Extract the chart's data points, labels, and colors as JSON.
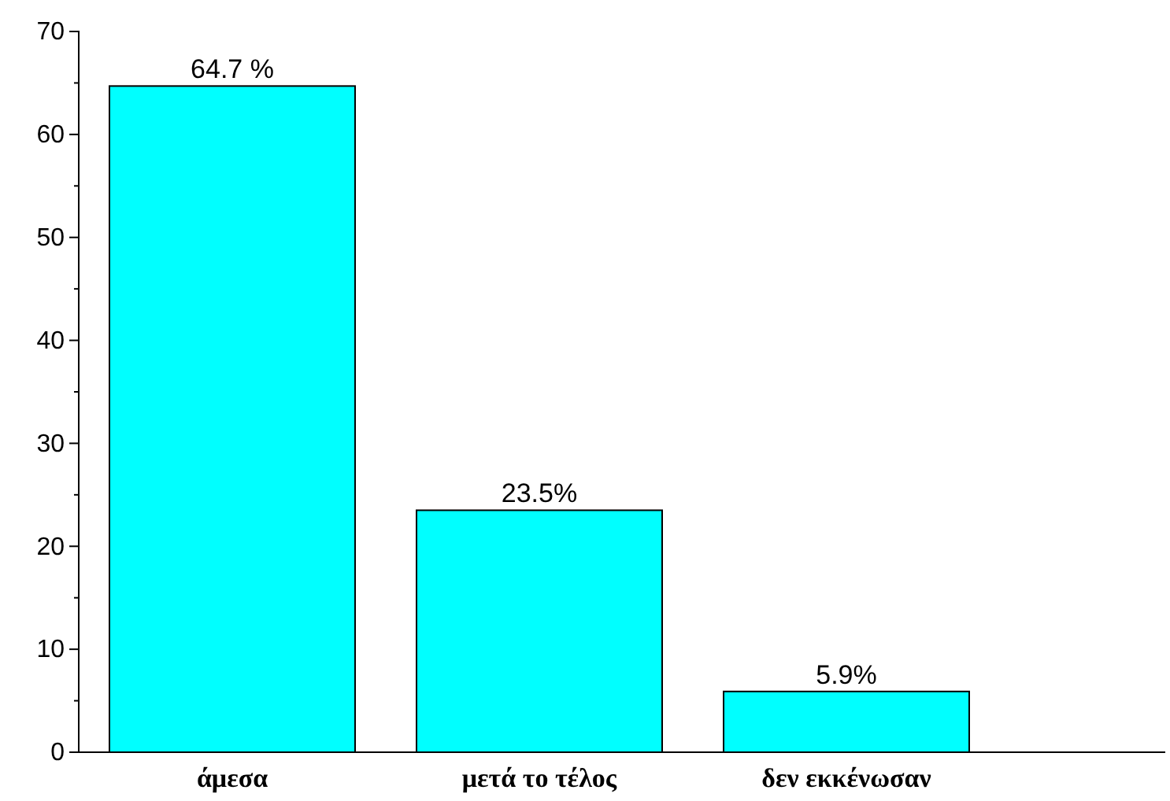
{
  "chart_data": {
    "type": "bar",
    "categories": [
      "άμεσα",
      "μετά το τέλος",
      "δεν εκκένωσαν"
    ],
    "values": [
      64.7,
      23.5,
      5.9
    ],
    "color": "#00ffff",
    "value_labels": [
      "64.7 %",
      "23.5%",
      "5.9%"
    ],
    "ylim": [
      0,
      70
    ],
    "yticks": [
      0,
      10,
      20,
      30,
      40,
      50,
      60,
      70
    ],
    "grid": false
  }
}
